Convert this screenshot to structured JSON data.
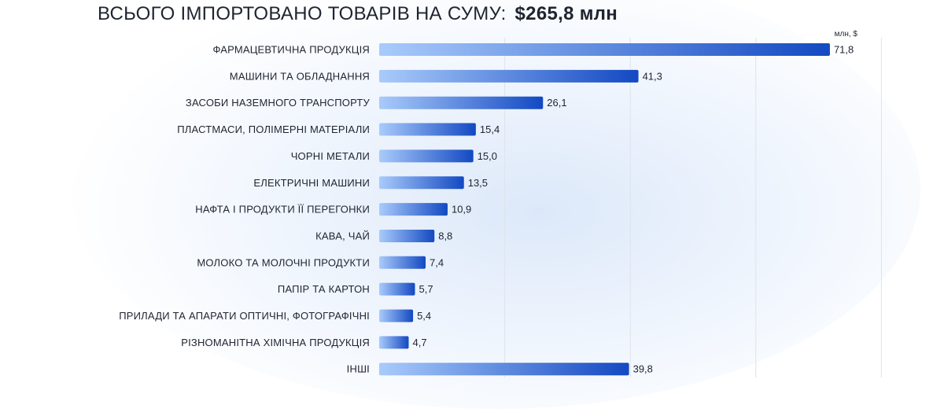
{
  "header": {
    "title_prefix": "ВСЬОГО ІМПОРТОВАНО ТОВАРІВ НА СУМУ:",
    "title_total": "$265,8 млн"
  },
  "colors": {
    "bar_start": "#a9cbfb",
    "bar_end": "#1349c2",
    "gridline": "#dfe3ea"
  },
  "chart_data": {
    "type": "bar",
    "orientation": "horizontal",
    "unit_label": "млн, $",
    "categories": [
      "ФАРМАЦЕВТИЧНА ПРОДУКЦІЯ",
      "МАШИНИ ТА ОБЛАДНАННЯ",
      "ЗАСОБИ НАЗЕМНОГО ТРАНСПОРТУ",
      "ПЛАСТМАСИ, ПОЛІМЕРНІ МАТЕРІАЛИ",
      "ЧОРНІ МЕТАЛИ",
      "ЕЛЕКТРИЧНІ МАШИНИ",
      "НАФТА І ПРОДУКТИ ЇЇ ПЕРЕГОНКИ",
      "КАВА, ЧАЙ",
      "МОЛОКО ТА МОЛОЧНІ ПРОДУКТИ",
      "ПАПІР ТА КАРТОН",
      "ПРИЛАДИ ТА АПАРАТИ ОПТИЧНІ, ФОТОГРАФІЧНІ",
      "РІЗНОМАНІТНА ХІМІЧНА ПРОДУКЦІЯ",
      "ІНШІ"
    ],
    "values": [
      71.8,
      41.3,
      26.1,
      15.4,
      15.0,
      13.5,
      10.9,
      8.8,
      7.4,
      5.7,
      5.4,
      4.7,
      39.8
    ],
    "value_labels": [
      "71,8",
      "41,3",
      "26,1",
      "15,4",
      "15,0",
      "13,5",
      "10,9",
      "8,8",
      "7,4",
      "5,7",
      "5,4",
      "4,7",
      "39,8"
    ],
    "xlim": [
      0,
      80
    ],
    "grid": true,
    "gridline_values": [
      20,
      40,
      60,
      80
    ]
  }
}
